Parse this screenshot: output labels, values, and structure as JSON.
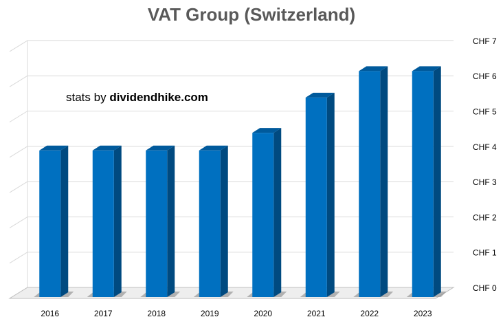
{
  "chart_data": {
    "type": "bar",
    "title": "VAT Group (Switzerland)",
    "annotation_prefix": "stats by ",
    "annotation_site": "dividendhike.com",
    "categories": [
      "2016",
      "2017",
      "2018",
      "2019",
      "2020",
      "2021",
      "2022",
      "2023"
    ],
    "values": [
      4.0,
      4.0,
      4.0,
      4.0,
      4.5,
      5.5,
      6.25,
      6.25
    ],
    "ylim": [
      0,
      7
    ],
    "yticks": [
      "CHF 0",
      "CHF 1",
      "CHF 2",
      "CHF 3",
      "CHF 4",
      "CHF 5",
      "CHF 6",
      "CHF 7"
    ],
    "grid": true,
    "style": "3d-column",
    "colors": {
      "bar_front": "#0070c0",
      "bar_side": "#004a80",
      "bar_top": "#005a9c",
      "grid": "#d9d9d9",
      "floor": "#bfbfbf",
      "text": "#595959",
      "title": "#595959"
    }
  }
}
